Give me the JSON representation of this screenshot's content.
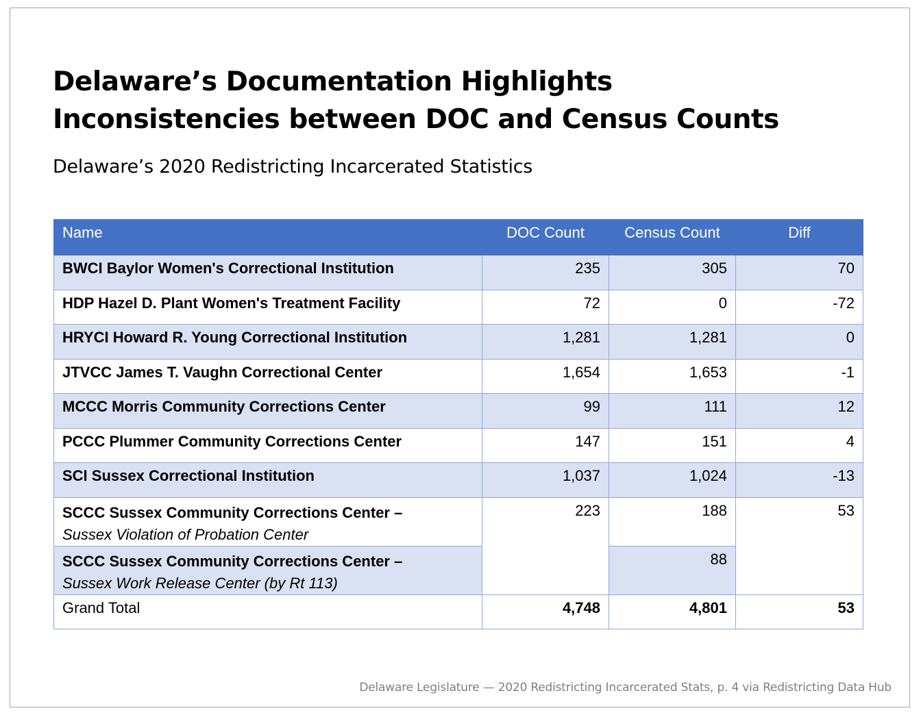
{
  "title": "Delaware’s Documentation Highlights Inconsistencies between DOC and Census Counts",
  "subtitle": "Delaware’s 2020 Redistricting Incarcerated Statistics",
  "table": {
    "headers": [
      "Name",
      "DOC Count",
      "Census Count",
      "Diff"
    ],
    "rows": [
      {
        "name": "BWCI Baylor Women's Correctional Institution",
        "doc": "235",
        "census": "305",
        "diff": "70"
      },
      {
        "name": "HDP Hazel D. Plant Women's Treatment Facility",
        "doc": "72",
        "census": "0",
        "diff": "-72"
      },
      {
        "name": "HRYCI Howard R. Young Correctional Institution",
        "doc": "1,281",
        "census": "1,281",
        "diff": "0"
      },
      {
        "name": "JTVCC James T. Vaughn Correctional Center",
        "doc": "1,654",
        "census": "1,653",
        "diff": "-1"
      },
      {
        "name": "MCCC Morris Community Corrections Center",
        "doc": "99",
        "census": "111",
        "diff": "12"
      },
      {
        "name": "PCCC Plummer Community Corrections Center",
        "doc": "147",
        "census": "151",
        "diff": "4"
      },
      {
        "name": "SCI Sussex Correctional Institution",
        "doc": "1,037",
        "census": "1,024",
        "diff": "-13"
      }
    ],
    "sccc": {
      "name": "SCCC Sussex Community Corrections Center –",
      "doc": "223",
      "diff": "53",
      "sub_rows": [
        {
          "subname": "Sussex Violation of Probation Center",
          "census": "188"
        },
        {
          "subname": "Sussex Work Release Center (by Rt 113)",
          "census": "88"
        }
      ]
    },
    "grand_total": {
      "label": "Grand Total",
      "doc": "4,748",
      "census": "4,801",
      "diff": "53"
    }
  },
  "source": "Delaware Legislature — 2020 Redistricting Incarcerated Stats, p. 4 via Redistricting Data Hub",
  "colors": {
    "header_bg": "#4472c4",
    "band_bg": "#d9e1f2",
    "border": "#8ea9db",
    "source_text": "#7f7f7f"
  }
}
